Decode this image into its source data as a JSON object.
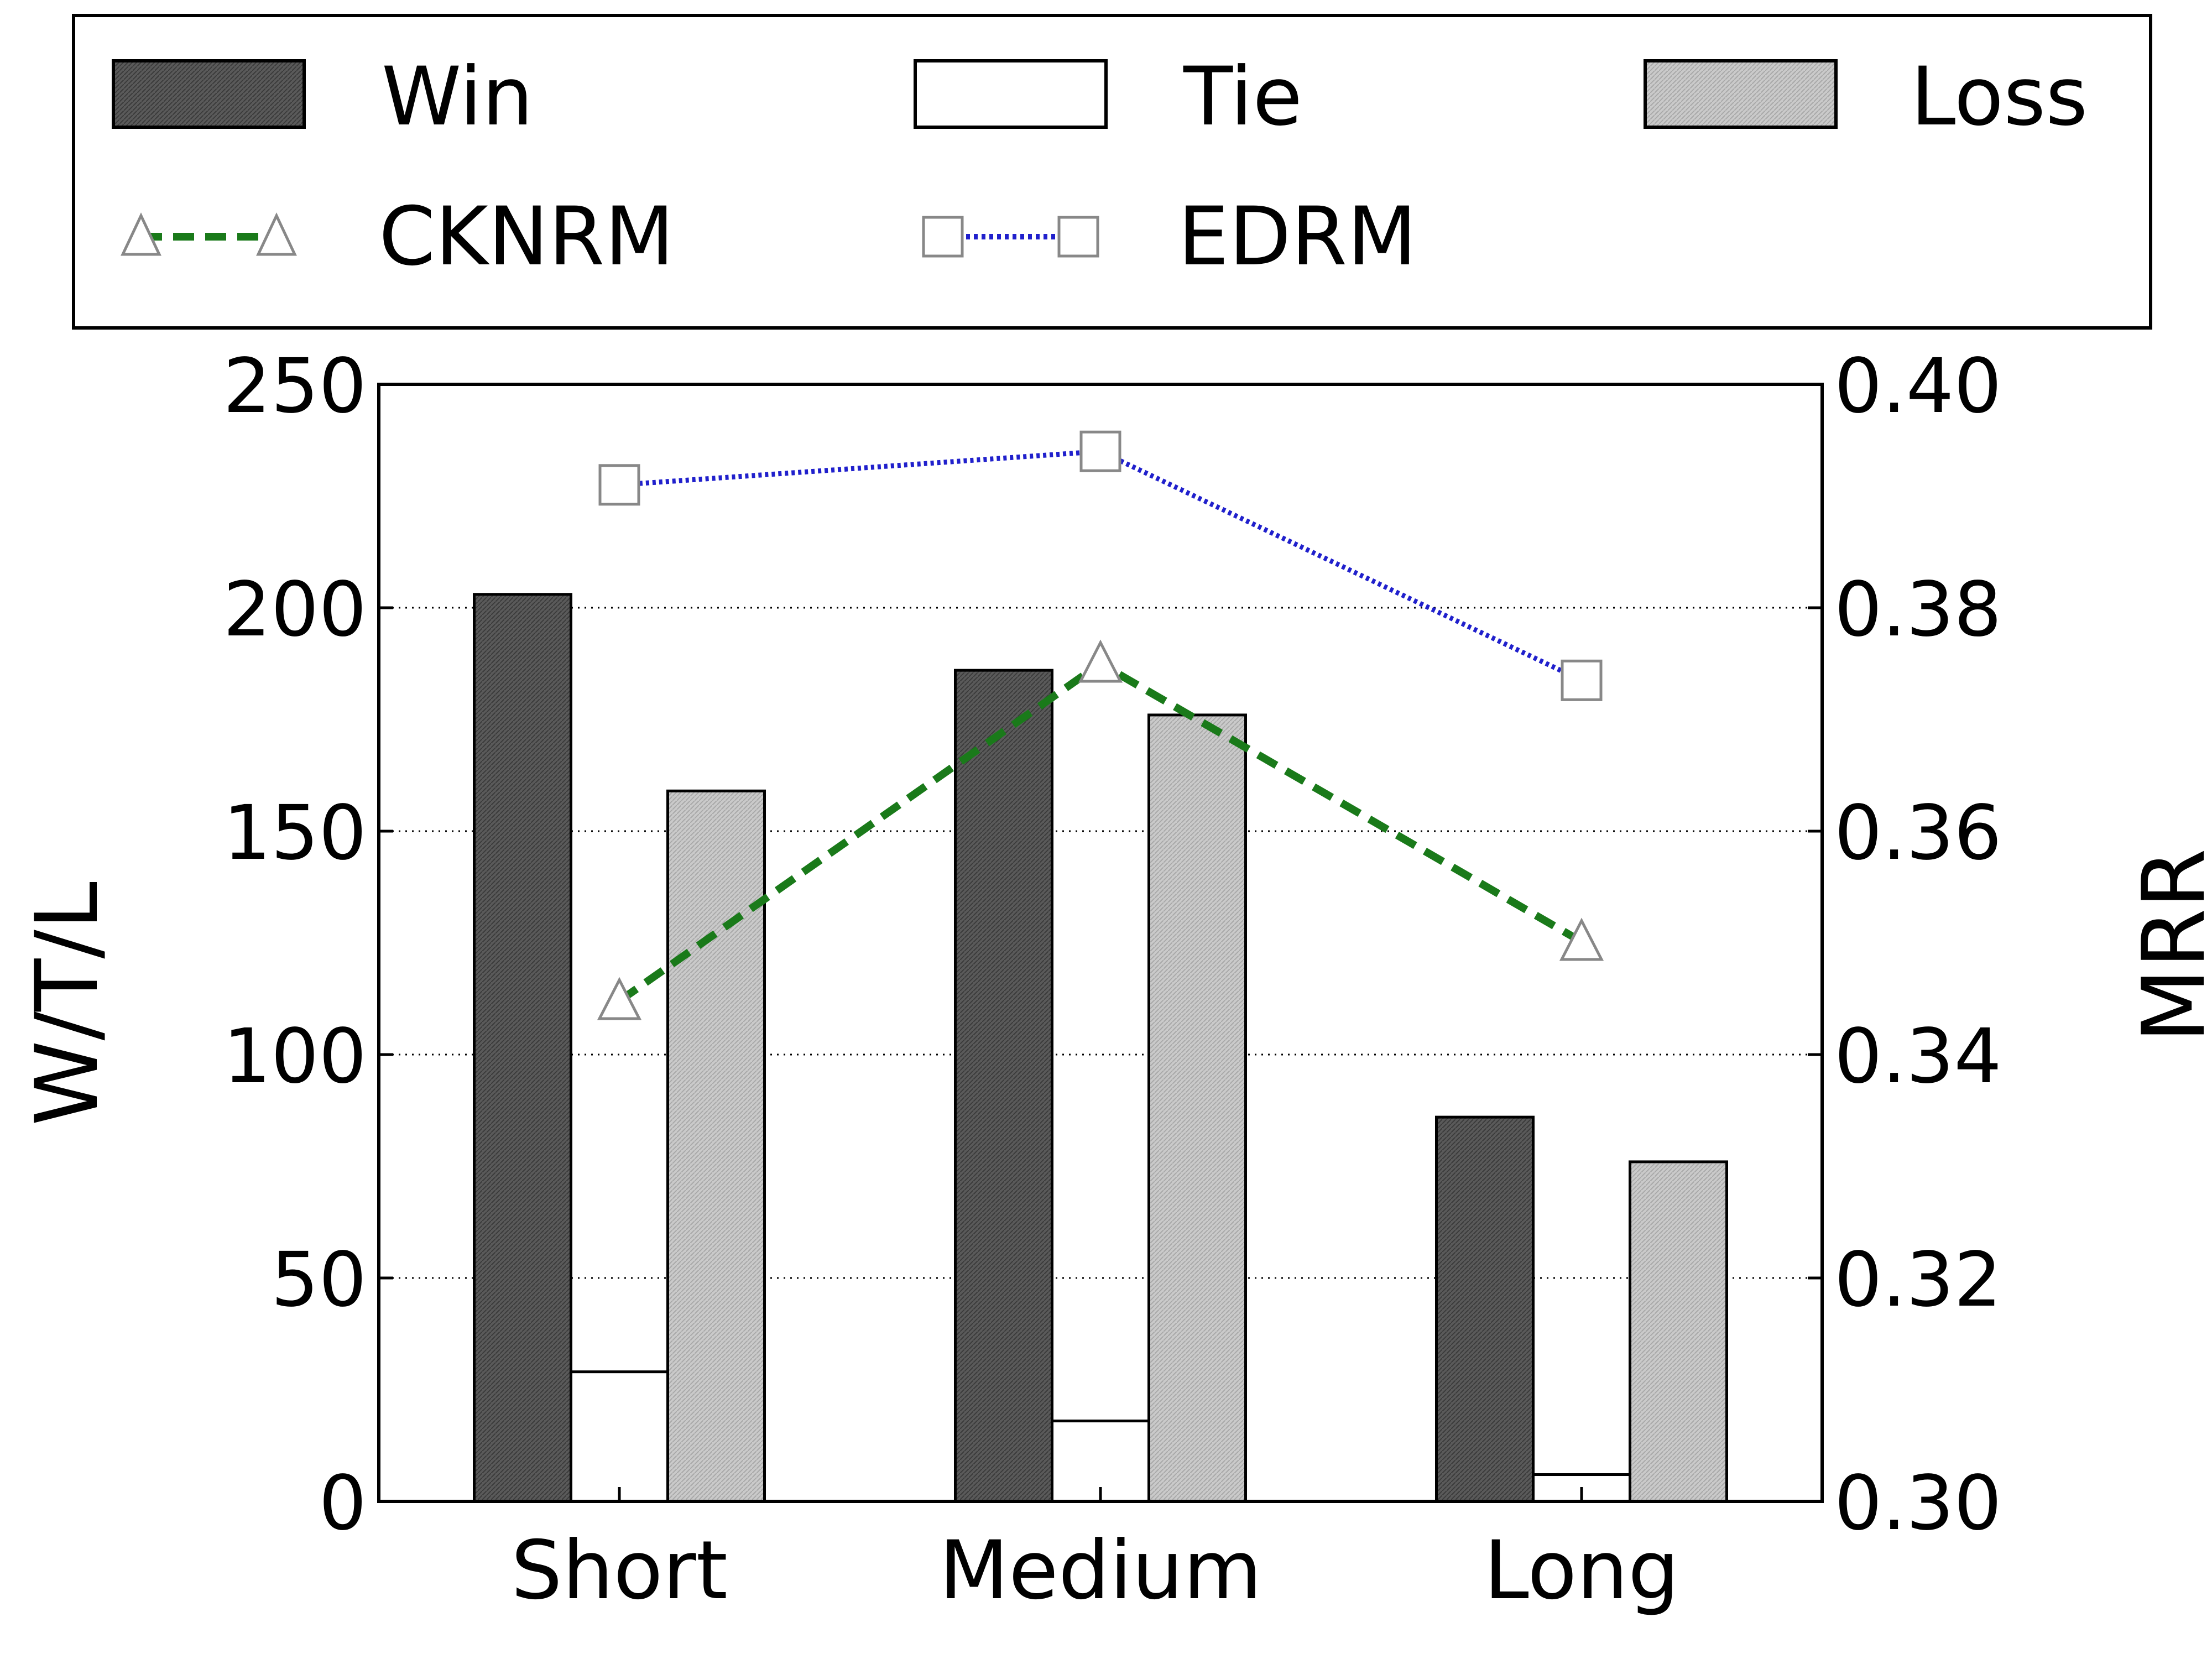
{
  "chart_data": {
    "type": "bar",
    "categories": [
      "Short",
      "Medium",
      "Long"
    ],
    "series": [
      {
        "name": "Win",
        "kind": "bar",
        "axis": "left",
        "values": [
          203,
          186,
          86
        ],
        "fill": "#5a5a5a"
      },
      {
        "name": "Tie",
        "kind": "bar",
        "axis": "left",
        "values": [
          29,
          18,
          6
        ],
        "fill": "#ffffff"
      },
      {
        "name": "Loss",
        "kind": "bar",
        "axis": "left",
        "values": [
          159,
          176,
          76
        ],
        "fill": "#c8c8c8"
      },
      {
        "name": "CKNRM",
        "kind": "line",
        "axis": "right",
        "values": [
          0.3448,
          0.375,
          0.3501
        ],
        "color": "#1a7a1a",
        "linestyle": "dashed",
        "marker": "triangle"
      },
      {
        "name": "EDRM",
        "kind": "line",
        "axis": "right",
        "values": [
          0.391,
          0.394,
          0.3735
        ],
        "color": "#2020cc",
        "linestyle": "dotted",
        "marker": "square"
      }
    ],
    "ylabel": "W/T/L",
    "ylim": [
      0,
      250
    ],
    "yticks": [
      "0",
      "50",
      "100",
      "150",
      "200",
      "250"
    ],
    "y2label": "MRR",
    "y2lim": [
      0.3,
      0.4
    ],
    "y2ticks": [
      "0.30",
      "0.32",
      "0.34",
      "0.36",
      "0.38",
      "0.40"
    ],
    "grid": "horizontal dotted",
    "legend": [
      "Win",
      "Tie",
      "Loss",
      "CKNRM",
      "EDRM"
    ],
    "legend_placement": "top, above plot"
  }
}
